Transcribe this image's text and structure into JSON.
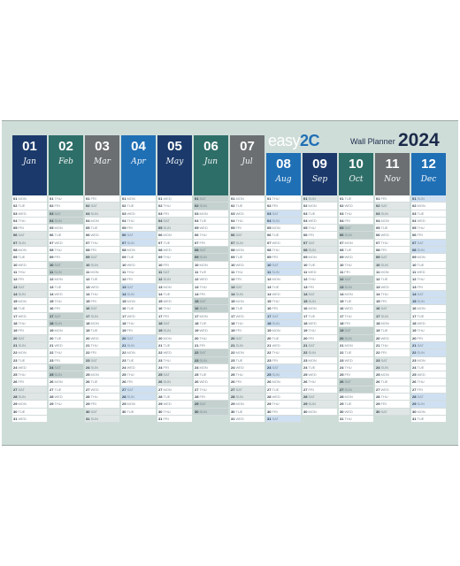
{
  "brand": {
    "name_prefix": "easy",
    "name_suffix": "2C",
    "subtitle": "Wall Planner",
    "year": "2024"
  },
  "colors": {
    "navy": "#1b3a6b",
    "teal": "#2e6e68",
    "gray": "#6b6f72",
    "blue": "#1f6fb5"
  },
  "weekdays": [
    "MON",
    "TUE",
    "WED",
    "THU",
    "FRI",
    "SAT",
    "SUN"
  ],
  "months": [
    {
      "num": "01",
      "name": "Jan",
      "color": "navy",
      "days": 31,
      "start": 0
    },
    {
      "num": "02",
      "name": "Feb",
      "color": "teal",
      "days": 29,
      "start": 3
    },
    {
      "num": "03",
      "name": "Mar",
      "color": "gray",
      "days": 31,
      "start": 4
    },
    {
      "num": "04",
      "name": "Apr",
      "color": "blue",
      "days": 30,
      "start": 0
    },
    {
      "num": "05",
      "name": "May",
      "color": "navy",
      "days": 31,
      "start": 2
    },
    {
      "num": "06",
      "name": "Jun",
      "color": "teal",
      "days": 30,
      "start": 5
    },
    {
      "num": "07",
      "name": "Jul",
      "color": "gray",
      "days": 31,
      "start": 0
    },
    {
      "num": "08",
      "name": "Aug",
      "color": "blue",
      "days": 31,
      "start": 3
    },
    {
      "num": "09",
      "name": "Sep",
      "color": "navy",
      "days": 30,
      "start": 6
    },
    {
      "num": "10",
      "name": "Oct",
      "color": "teal",
      "days": 31,
      "start": 1
    },
    {
      "num": "11",
      "name": "Nov",
      "color": "gray",
      "days": 30,
      "start": 4
    },
    {
      "num": "12",
      "name": "Dec",
      "color": "blue",
      "days": 31,
      "start": 6
    }
  ]
}
